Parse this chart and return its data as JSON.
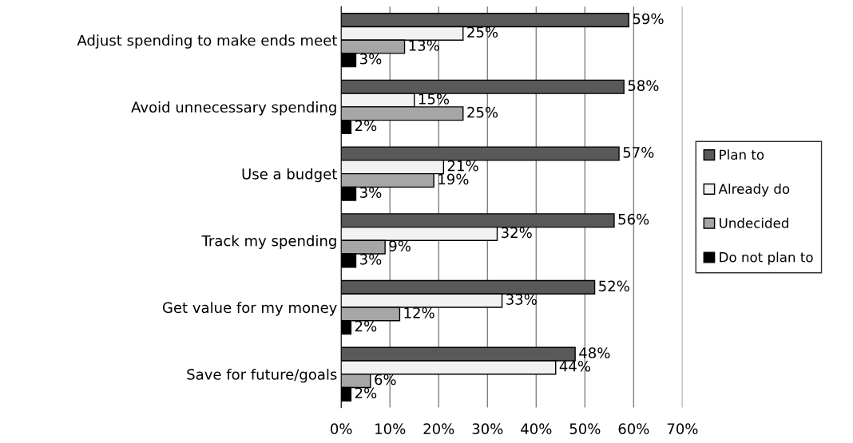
{
  "chart_data": {
    "type": "bar",
    "orientation": "horizontal",
    "categories": [
      "Adjust spending to make ends meet",
      "Avoid unnecessary spending",
      "Use a budget",
      "Track my spending",
      "Get value for my money",
      "Save for future/goals"
    ],
    "series": [
      {
        "name": "Plan to",
        "color": "#595959",
        "values": [
          59,
          58,
          57,
          56,
          52,
          48
        ],
        "value_labels": [
          "59%",
          "58%",
          "57%",
          "56%",
          "52%",
          "48%"
        ]
      },
      {
        "name": "Already do",
        "color": "#f2f2f2",
        "values": [
          25,
          15,
          21,
          32,
          33,
          44
        ],
        "value_labels": [
          "25%",
          "15%",
          "21%",
          "32%",
          "33%",
          "44%"
        ]
      },
      {
        "name": "Undecided",
        "color": "#a6a6a6",
        "values": [
          13,
          25,
          19,
          9,
          12,
          6
        ],
        "value_labels": [
          "13%",
          "25%",
          "19%",
          "9%",
          "12%",
          "6%"
        ]
      },
      {
        "name": "Do not plan to",
        "color": "#000000",
        "values": [
          3,
          2,
          3,
          3,
          2,
          2
        ],
        "value_labels": [
          "3%",
          "2%",
          "3%",
          "3%",
          "2%",
          "2%"
        ]
      }
    ],
    "xlim": [
      0,
      70
    ],
    "xticks": [
      {
        "value": 0,
        "label": "0%"
      },
      {
        "value": 10,
        "label": "10%"
      },
      {
        "value": 20,
        "label": "20%"
      },
      {
        "value": 30,
        "label": "30%"
      },
      {
        "value": 40,
        "label": "40%"
      },
      {
        "value": 50,
        "label": "50%"
      },
      {
        "value": 60,
        "label": "60%"
      },
      {
        "value": 70,
        "label": "70%"
      }
    ],
    "grid": "x",
    "legend": "right"
  }
}
